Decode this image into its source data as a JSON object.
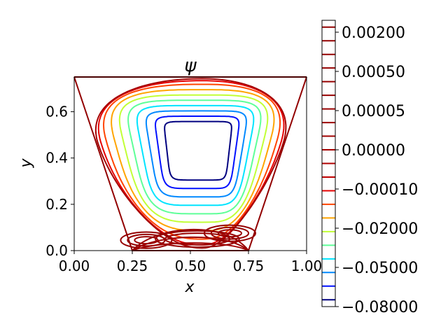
{
  "chart_data": {
    "type": "contour",
    "title": "ψ",
    "xlabel": "x",
    "ylabel": "y",
    "xlim": [
      0.0,
      1.0
    ],
    "ylim": [
      0.0,
      0.75
    ],
    "x_ticks": [
      "0.00",
      "0.25",
      "0.50",
      "0.75",
      "1.00"
    ],
    "y_ticks": [
      "0.0",
      "0.2",
      "0.4",
      "0.6"
    ],
    "grid": false,
    "domain_outline": {
      "left_wall": [
        [
          0.0,
          0.75
        ],
        [
          0.25,
          0.0
        ]
      ],
      "right_wall": [
        [
          1.0,
          0.75
        ],
        [
          0.75,
          0.0
        ]
      ],
      "bottom": [
        [
          0.25,
          0.0
        ],
        [
          0.75,
          0.0
        ]
      ]
    },
    "main_vortex_center": [
      0.55,
      0.46
    ],
    "corner_eddies": [
      {
        "center": [
          0.31,
          0.045
        ]
      },
      {
        "center": [
          0.53,
          0.05
        ]
      },
      {
        "center": [
          0.67,
          0.075
        ]
      }
    ],
    "levels": [
      -0.08,
      -0.07,
      -0.06,
      -0.05,
      -0.04,
      -0.03,
      -0.02,
      -0.01,
      -0.001,
      -0.0005,
      -0.0001,
      -5e-05,
      -1e-05,
      0.0,
      1e-05,
      5e-05,
      0.0001,
      0.0005,
      0.001,
      0.002,
      0.005
    ],
    "colorbar": {
      "tick_labels": [
        "0.00200",
        "0.00050",
        "0.00005",
        "0.00000",
        "−0.00010",
        "−0.02000",
        "−0.05000",
        "−0.08000"
      ],
      "colors_bottom_to_top": [
        "#000080",
        "#0010ff",
        "#0088ff",
        "#00e4ff",
        "#5eff98",
        "#c1ff36",
        "#ffa400",
        "#ff4400",
        "#e60000",
        "#c00000",
        "#b00000",
        "#a50000",
        "#a00000",
        "#9c0000",
        "#990000",
        "#970000",
        "#960000",
        "#950000",
        "#940000",
        "#930000",
        "#920000"
      ]
    }
  }
}
